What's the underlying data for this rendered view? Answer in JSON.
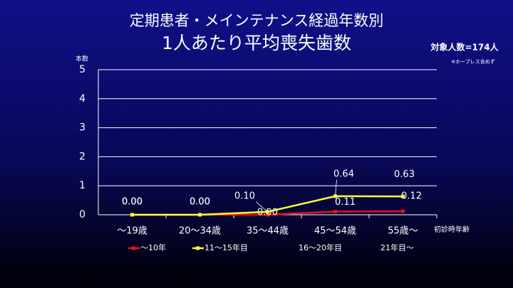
{
  "chart_data": {
    "type": "line",
    "title": [
      "定期患者・メインテナンス経過年数別",
      "1人あたり平均喪失歯数"
    ],
    "subtitle": "対象人数=174人",
    "note": "※ホープレス含めず",
    "y_label": "本数",
    "x_label": "初診時年齢",
    "categories": [
      "～19歳",
      "20～34歳",
      "35～44歳",
      "45～54歳",
      "55歳～"
    ],
    "series": [
      {
        "name": "～10年",
        "color": "#e8101a",
        "values": [
          0,
          0,
          0,
          0.11,
          0.12
        ],
        "value_labels": [
          "0.00",
          "0.00",
          "0.00",
          "0.11",
          "0.12"
        ]
      },
      {
        "name": "11～15年目",
        "color": "#ffff33",
        "values": [
          0,
          0,
          0.1,
          0.64,
          0.63
        ],
        "value_labels": [
          "0.00",
          "0.00",
          "0.10",
          "0.64",
          "0.63"
        ]
      },
      {
        "name": "16～20年目",
        "values": [
          null,
          null,
          null,
          null,
          null
        ]
      },
      {
        "name": "21年目～",
        "values": [
          null,
          null,
          null,
          null,
          null
        ]
      }
    ],
    "ylim": [
      0,
      5
    ],
    "yticks": [
      0,
      1,
      2,
      3,
      4,
      5
    ],
    "grid": true
  }
}
